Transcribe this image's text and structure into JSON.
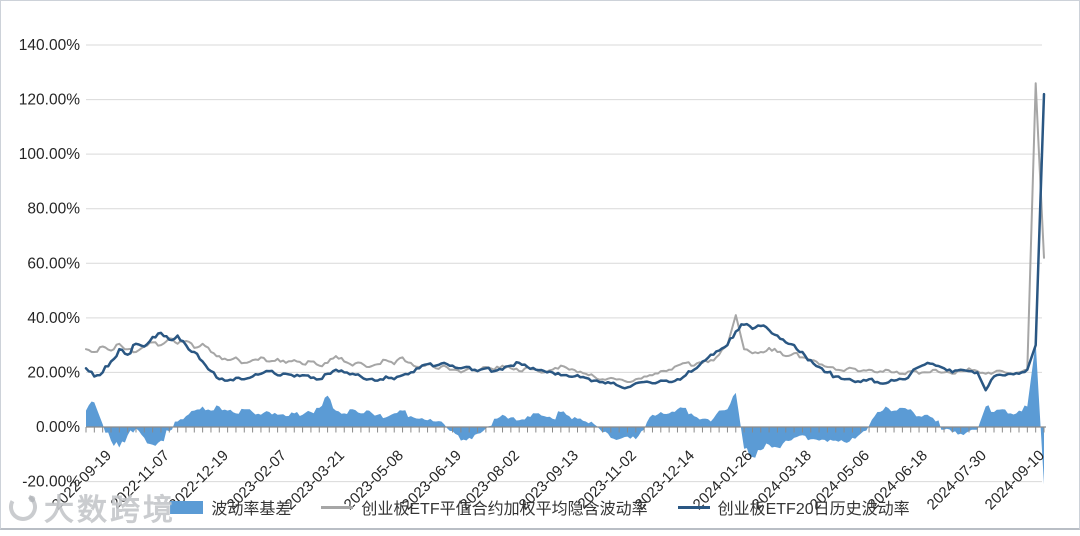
{
  "watermark": {
    "text": "大数跨境"
  },
  "legend": [
    {
      "label": "波动率基差",
      "marker": "area",
      "color": "#5B9BD5"
    },
    {
      "label": "创业板ETF平值合约加权平均隐含波动率",
      "marker": "line",
      "color": "#A6A6A6"
    },
    {
      "label": "创业板ETF20日历史波动率",
      "marker": "line",
      "color": "#2A5783"
    }
  ],
  "chart_data": {
    "type": "combo",
    "subtype": "area + 2 lines",
    "title": "",
    "xlabel": "",
    "ylabel": "",
    "ylim": [
      -20,
      140
    ],
    "grid": true,
    "legend_position": "bottom",
    "n_points": 116,
    "y_ticks": [
      {
        "value": 140,
        "label": "140.00%"
      },
      {
        "value": 120,
        "label": "120.00%"
      },
      {
        "value": 100,
        "label": "100.00%"
      },
      {
        "value": 80,
        "label": "80.00%"
      },
      {
        "value": 60,
        "label": "60.00%"
      },
      {
        "value": 40,
        "label": "40.00%"
      },
      {
        "value": 20,
        "label": "20.00%"
      },
      {
        "value": 0,
        "label": "0.00%"
      },
      {
        "value": -20,
        "label": "-20.00%"
      }
    ],
    "x_labels": [
      {
        "index": 0,
        "label": "2022-09-19"
      },
      {
        "index": 7,
        "label": "2022-11-07"
      },
      {
        "index": 14,
        "label": "2022-12-19"
      },
      {
        "index": 21,
        "label": "2023-02-07"
      },
      {
        "index": 28,
        "label": "2023-03-21"
      },
      {
        "index": 35,
        "label": "2023-05-08"
      },
      {
        "index": 42,
        "label": "2023-06-19"
      },
      {
        "index": 49,
        "label": "2023-08-02"
      },
      {
        "index": 56,
        "label": "2023-09-13"
      },
      {
        "index": 63,
        "label": "2023-11-02"
      },
      {
        "index": 70,
        "label": "2023-12-14"
      },
      {
        "index": 77,
        "label": "2024-01-26"
      },
      {
        "index": 84,
        "label": "2024-03-18"
      },
      {
        "index": 91,
        "label": "2024-05-06"
      },
      {
        "index": 98,
        "label": "2024-06-18"
      },
      {
        "index": 105,
        "label": "2024-07-30"
      },
      {
        "index": 112,
        "label": "2024-09-10"
      }
    ],
    "series": [
      {
        "name": "波动率基差",
        "type": "area",
        "color": "#5B9BD5",
        "unit": "%",
        "values": [
          6,
          9,
          1,
          -5,
          -7.5,
          -3,
          -0.5,
          -4,
          -6.5,
          -5,
          -1.5,
          2,
          4,
          6,
          7.5,
          6,
          7.5,
          6,
          5,
          6.5,
          5.5,
          4.5,
          5.5,
          4.5,
          4,
          5,
          4.5,
          5.5,
          7,
          11.5,
          6,
          5,
          6.5,
          5,
          6,
          4.5,
          3.5,
          5,
          6,
          4,
          3,
          2.5,
          2,
          1,
          -1.5,
          -5,
          -4,
          -2.5,
          -0.5,
          3,
          4.5,
          3.5,
          2.5,
          4,
          5,
          4,
          3,
          5.5,
          4,
          3,
          2,
          1,
          -2,
          -4,
          -4.5,
          -3.5,
          -4.5,
          -1,
          4.5,
          5.5,
          5,
          6.5,
          7,
          4,
          3,
          2,
          6,
          6.5,
          12.5,
          -8,
          -11,
          -8.5,
          -6.5,
          -7.5,
          -5,
          -4,
          -3,
          -4.5,
          -5,
          -5.5,
          -5,
          -5.5,
          -4,
          -2.5,
          0.5,
          5.5,
          7.5,
          6,
          7,
          6.5,
          4,
          4.5,
          2,
          -1,
          -2,
          -2.5,
          -1.5,
          -1,
          7.5,
          5.5,
          6.5,
          5,
          6,
          7.5,
          31,
          -21
        ]
      },
      {
        "name": "创业板ETF平值合约加权平均隐含波动率",
        "type": "line",
        "color": "#A6A6A6",
        "unit": "%",
        "values": [
          28.5,
          27.5,
          29.5,
          28,
          30.5,
          28.5,
          27.5,
          29.5,
          31,
          30,
          32.5,
          30.5,
          31.5,
          29,
          30.5,
          27.5,
          26,
          24.5,
          25.5,
          23.5,
          24.5,
          25.5,
          24,
          25,
          23.5,
          24.5,
          23,
          24,
          22.5,
          23.5,
          26,
          24,
          22.5,
          23.5,
          22,
          23,
          24.5,
          23,
          25.5,
          23.5,
          22,
          23,
          21.5,
          22.5,
          21,
          20,
          21.5,
          20.5,
          22,
          21,
          22.5,
          21.5,
          20.5,
          22,
          21,
          20,
          21,
          22.5,
          21,
          20,
          19.5,
          18.5,
          17.5,
          18,
          17.5,
          16.5,
          17.5,
          18.5,
          19,
          20.5,
          21,
          22.5,
          23.5,
          22.5,
          23.5,
          24.5,
          26.5,
          30,
          41,
          28.5,
          27,
          27.5,
          29,
          27.5,
          26,
          27,
          25.5,
          24.5,
          23,
          22,
          21,
          20.5,
          21.5,
          20.5,
          21,
          20,
          21,
          20,
          19.5,
          20.5,
          19.5,
          20,
          21,
          20,
          19.5,
          20.5,
          21.5,
          20.5,
          19.5,
          20,
          20.5,
          19.5,
          20,
          21,
          126,
          62
        ]
      },
      {
        "name": "创业板ETF20日历史波动率",
        "type": "line",
        "color": "#2A5783",
        "unit": "%",
        "values": [
          21.5,
          18.5,
          20,
          24,
          28.5,
          26.5,
          30.5,
          29.5,
          33,
          34.5,
          32,
          33.5,
          30,
          27.5,
          24,
          20.5,
          17.5,
          17,
          18,
          17.5,
          18.5,
          19.5,
          20.5,
          19,
          19.5,
          18.5,
          19,
          18,
          17.5,
          19.5,
          21,
          20,
          19.5,
          18.5,
          17.5,
          17,
          18.5,
          17.5,
          19,
          20,
          21.5,
          23,
          22.5,
          23.5,
          22.5,
          21.5,
          22,
          20.5,
          21.5,
          20.5,
          21,
          22.5,
          23.5,
          22,
          21,
          20.5,
          20,
          19,
          18.5,
          19,
          18,
          17,
          16.5,
          16,
          15,
          14.5,
          16,
          16.5,
          16,
          17,
          16.5,
          17.5,
          19,
          21,
          24,
          26.5,
          28,
          30,
          35,
          37.5,
          36,
          37,
          35.5,
          33.5,
          31,
          30,
          27.5,
          24.5,
          22,
          20,
          18.5,
          17.5,
          17,
          16.5,
          17.5,
          16.5,
          16,
          17,
          17.5,
          19.5,
          22,
          23.5,
          22.5,
          21.5,
          20,
          21,
          20.5,
          20,
          13.5,
          18.5,
          19,
          19.5,
          19.5,
          21,
          30,
          122
        ]
      }
    ],
    "colors": {
      "grid": "#d9d9d9",
      "axis": "#8a8a8a",
      "tick_text": "#262626"
    }
  }
}
